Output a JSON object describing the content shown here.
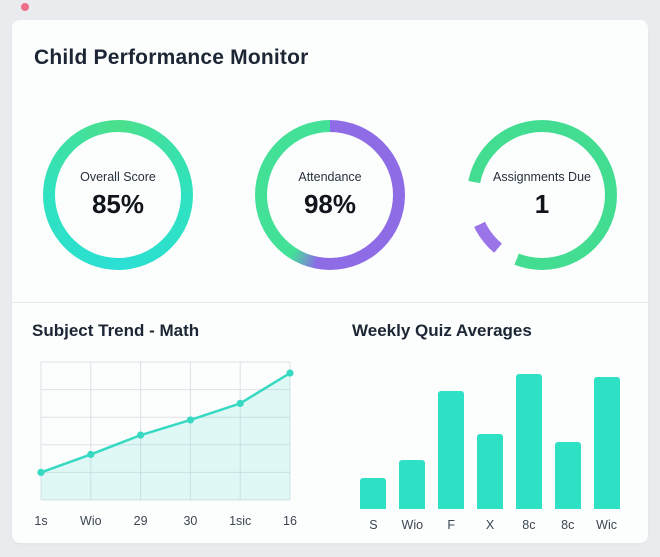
{
  "header": {
    "title": "Child Performance Monitor"
  },
  "colors": {
    "teal": "#2ee0c4",
    "teal_line": "#38d9c3",
    "green": "#44e095",
    "purple": "#8d6ce6",
    "grid": "#dde2e8",
    "area_fill": "rgba(56,217,195,0.14)",
    "accent_dot": "#ef6e8a"
  },
  "gauges": [
    {
      "label": "Overall Score",
      "value": "85%",
      "gradient": [
        "#4be08b",
        "#2fe2c0",
        "#2bdfd4",
        "#2fe2c0",
        "#4be08b"
      ]
    },
    {
      "label": "Attendance",
      "value": "98%",
      "segments": [
        {
          "color": "#8d6ce6",
          "from": 0,
          "to": 53
        },
        {
          "color": "#43e098",
          "from": 59,
          "to": 100
        }
      ]
    },
    {
      "label": "Assignments Due",
      "value": "1",
      "segments": [
        {
          "color": "#43dd92",
          "from": 0,
          "to": 56
        },
        {
          "color": "transparent",
          "from": 56,
          "to": 61
        },
        {
          "color": "#9a74e8",
          "from": 61,
          "to": 68
        },
        {
          "color": "transparent",
          "from": 68,
          "to": 78
        },
        {
          "color": "#43dd92",
          "from": 78,
          "to": 100
        }
      ]
    }
  ],
  "chart_data": [
    {
      "type": "line",
      "title": "Subject Trend - Math",
      "x": [
        "1s",
        "Wio",
        "29",
        "30",
        "1sic",
        "16"
      ],
      "values": [
        20,
        33,
        47,
        58,
        70,
        92
      ],
      "ylim": [
        0,
        100
      ],
      "grid": true,
      "legend": "none",
      "xlabel": "",
      "ylabel": ""
    },
    {
      "type": "bar",
      "title": "Weekly Quiz Averages",
      "categories": [
        "S",
        "Wio",
        "F",
        "X",
        "8c",
        "8c",
        "Wic"
      ],
      "values": [
        21,
        33,
        79,
        50,
        90,
        45,
        88
      ],
      "ylim": [
        0,
        100
      ],
      "grid": false,
      "legend": "none",
      "xlabel": "",
      "ylabel": ""
    }
  ]
}
